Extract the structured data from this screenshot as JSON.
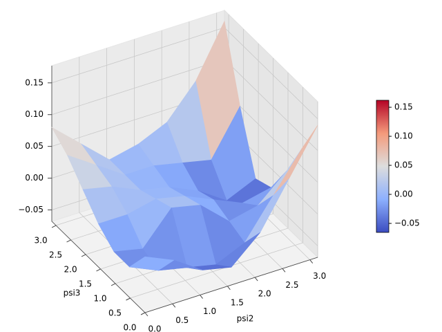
{
  "chart_data": {
    "type": "surface",
    "x_label": "psi2",
    "y_label": "psi3",
    "x": [
      0,
      0.5236,
      1.0472,
      1.5708,
      2.0944,
      2.618,
      3.1416
    ],
    "y": [
      0,
      0.5236,
      1.0472,
      1.5708,
      2.0944,
      2.618,
      3.1416
    ],
    "z": [
      [
        0.02,
        0.0,
        -0.03,
        -0.04,
        0.0,
        0.07,
        0.14
      ],
      [
        -0.02,
        -0.04,
        -0.05,
        -0.06,
        -0.04,
        0.02,
        0.08
      ],
      [
        -0.02,
        -0.03,
        0.02,
        0.01,
        -0.03,
        -0.02,
        0.02
      ],
      [
        0.0,
        0.0,
        0.01,
        0.0,
        -0.02,
        -0.04,
        -0.03
      ],
      [
        0.03,
        0.02,
        0.0,
        -0.01,
        -0.03,
        -0.06,
        -0.04
      ],
      [
        0.06,
        0.03,
        0.0,
        0.0,
        -0.01,
        -0.02,
        0.05
      ],
      [
        0.08,
        0.04,
        0.0,
        0.01,
        0.03,
        0.08,
        0.16
      ]
    ],
    "xlim": [
      0,
      3.1416
    ],
    "ylim": [
      0,
      3.1416
    ],
    "zlim": [
      -0.068,
      0.177
    ],
    "xticks": [
      {
        "value": 0,
        "label": "0.0"
      },
      {
        "value": 0.5,
        "label": "0.5"
      },
      {
        "value": 1,
        "label": "1.0"
      },
      {
        "value": 1.5,
        "label": "1.5"
      },
      {
        "value": 2,
        "label": "2.0"
      },
      {
        "value": 2.5,
        "label": "2.5"
      },
      {
        "value": 3,
        "label": "3.0"
      }
    ],
    "yticks": [
      {
        "value": 0,
        "label": "0.0"
      },
      {
        "value": 0.5,
        "label": "0.5"
      },
      {
        "value": 1,
        "label": "1.0"
      },
      {
        "value": 1.5,
        "label": "1.5"
      },
      {
        "value": 2,
        "label": "2.0"
      },
      {
        "value": 2.5,
        "label": "2.5"
      },
      {
        "value": 3,
        "label": "3.0"
      }
    ],
    "zticks": [
      {
        "value": -0.05,
        "label": "−0.05"
      },
      {
        "value": 0,
        "label": "0.00"
      },
      {
        "value": 0.05,
        "label": "0.05"
      },
      {
        "value": 0.1,
        "label": "0.10"
      },
      {
        "value": 0.15,
        "label": "0.15"
      }
    ],
    "colormap": "coolwarm",
    "colorbar": {
      "clim": [
        -0.0655,
        0.162
      ],
      "ticks": [
        {
          "value": -0.05,
          "label": "−0.05"
        },
        {
          "value": 0,
          "label": "0.00"
        },
        {
          "value": 0.05,
          "label": "0.05"
        },
        {
          "value": 0.1,
          "label": "0.10"
        },
        {
          "value": 0.15,
          "label": "0.15"
        }
      ]
    }
  }
}
